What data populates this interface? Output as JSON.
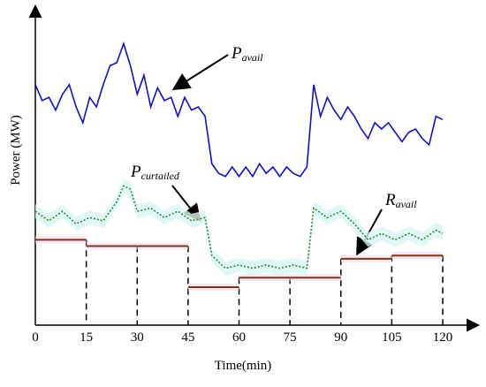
{
  "chart_data": {
    "type": "line",
    "xlabel": "Time(min)",
    "ylabel": "Power (MW)",
    "xlim": [
      0,
      120
    ],
    "xticks": [
      0,
      15,
      30,
      45,
      60,
      75,
      90,
      105,
      120
    ],
    "ylim": [
      0,
      100
    ],
    "series": [
      {
        "color": "#1010cc",
        "style": "solid",
        "x": [
          0,
          2,
          4,
          6,
          8,
          10,
          12,
          14,
          16,
          18,
          20,
          22,
          24,
          26,
          28,
          30,
          32,
          34,
          36,
          38,
          40,
          42,
          44,
          46,
          48,
          50,
          52,
          54,
          56,
          58,
          60,
          62,
          64,
          66,
          68,
          70,
          72,
          74,
          76,
          78,
          80,
          82,
          84,
          86,
          88,
          90,
          92,
          94,
          96,
          98,
          100,
          102,
          104,
          106,
          108,
          110,
          112,
          114,
          116,
          118,
          120
        ],
        "values": [
          76,
          71,
          72,
          68,
          73,
          76,
          69,
          64,
          72,
          69,
          76,
          82,
          83,
          89,
          82,
          73,
          79,
          69,
          75,
          71,
          72,
          66,
          72,
          68,
          69,
          66,
          51,
          48,
          47,
          50,
          47,
          50,
          47,
          51,
          48,
          50,
          47,
          50,
          48,
          47,
          50,
          76,
          66,
          72,
          68,
          65,
          69,
          66,
          62,
          59,
          64,
          62,
          64,
          61,
          58,
          61,
          62,
          59,
          57,
          66,
          65
        ]
      },
      {
        "color": "#2e8b2e",
        "style": "dotted",
        "x": [
          0,
          4,
          8,
          12,
          16,
          20,
          24,
          26,
          28,
          30,
          34,
          38,
          42,
          46,
          50,
          52,
          56,
          60,
          64,
          68,
          72,
          76,
          80,
          82,
          86,
          90,
          94,
          98,
          102,
          106,
          110,
          114,
          118,
          120
        ],
        "values": [
          36,
          33,
          36,
          32,
          34,
          33,
          39,
          44,
          43,
          36,
          37,
          34,
          36,
          33,
          34,
          22,
          18,
          19,
          18,
          19,
          18,
          19,
          18,
          37,
          34,
          36,
          32,
          27,
          29,
          27,
          29,
          27,
          30,
          29
        ]
      },
      {
        "color": "#7a3a10",
        "style": "step",
        "x": [
          0,
          15,
          30,
          45,
          60,
          75,
          90,
          105
        ],
        "values": [
          27,
          25,
          25,
          12,
          15,
          15,
          21,
          22
        ]
      }
    ],
    "annotations": [
      {
        "text": "P",
        "sub": "avail"
      },
      {
        "text": "P",
        "sub": "curtailed"
      },
      {
        "text": "R",
        "sub": "avail"
      }
    ]
  }
}
